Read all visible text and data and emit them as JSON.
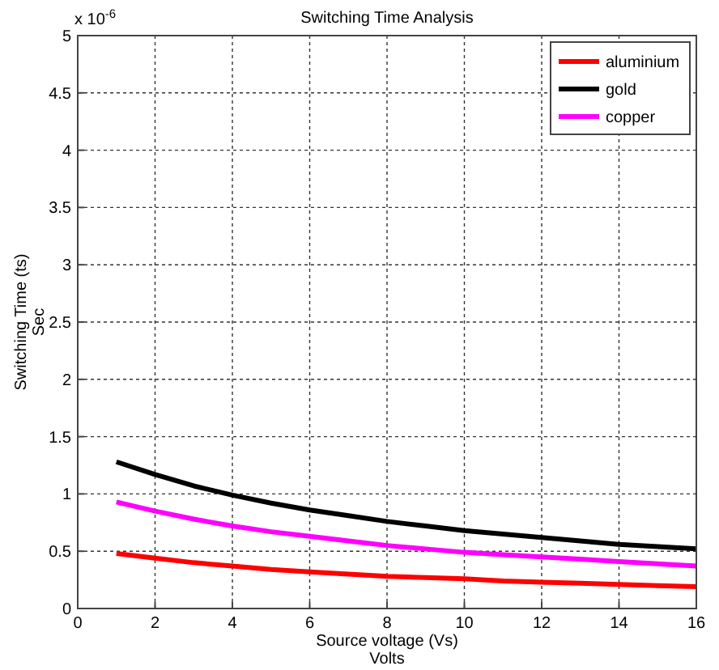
{
  "chart_data": {
    "type": "line",
    "title": "Switching Time Analysis",
    "xlabel": "Source voltage (Vs)\nVolts",
    "ylabel": "Switching Time (ts)\nSec",
    "annotations": [
      "x 10$^{-6}$"
    ],
    "x": [
      1,
      2,
      3,
      4,
      5,
      6,
      7,
      8,
      9,
      10,
      11,
      12,
      13,
      14,
      15,
      16
    ],
    "series": [
      {
        "name": "aluminium",
        "color": "#ff0000",
        "values": [
          0.48,
          0.44,
          0.4,
          0.37,
          0.34,
          0.32,
          0.3,
          0.28,
          0.27,
          0.26,
          0.24,
          0.23,
          0.22,
          0.21,
          0.2,
          0.19
        ]
      },
      {
        "name": "gold",
        "color": "#000000",
        "values": [
          1.28,
          1.17,
          1.07,
          0.99,
          0.92,
          0.86,
          0.81,
          0.76,
          0.72,
          0.68,
          0.65,
          0.62,
          0.59,
          0.56,
          0.54,
          0.52
        ]
      },
      {
        "name": "copper",
        "color": "#ff00ff",
        "values": [
          0.93,
          0.85,
          0.78,
          0.72,
          0.67,
          0.63,
          0.59,
          0.55,
          0.52,
          0.49,
          0.47,
          0.45,
          0.43,
          0.41,
          0.39,
          0.37
        ]
      }
    ],
    "xlim": [
      0,
      16
    ],
    "ylim": [
      0,
      5
    ],
    "xticks": [
      0,
      2,
      4,
      6,
      8,
      10,
      12,
      14,
      16
    ],
    "yticks": [
      0,
      0.5,
      1,
      1.5,
      2,
      2.5,
      3,
      3.5,
      4,
      4.5,
      5
    ],
    "grid": true,
    "legend": "top right",
    "line_style": "solid",
    "marker": "none"
  }
}
